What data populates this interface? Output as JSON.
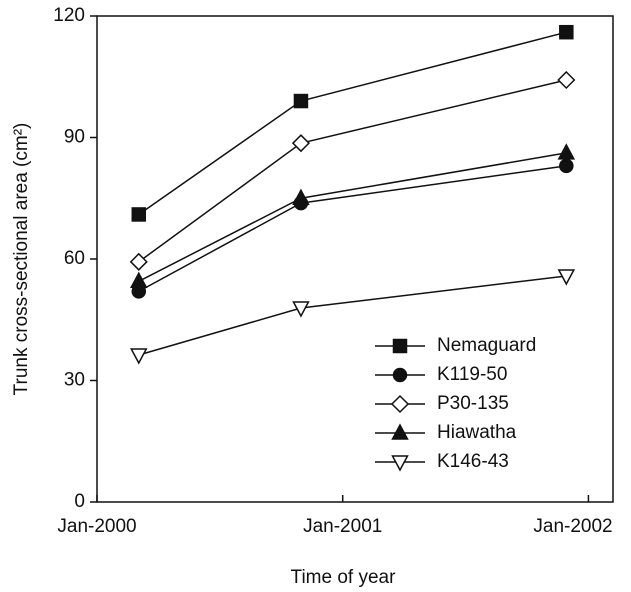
{
  "chart_data": {
    "type": "line",
    "x_label": "Time of year",
    "y_label": "Trunk cross-sectional area (cm²)",
    "x": [
      2000.17,
      2000.83,
      2001.91
    ],
    "xlim": [
      2000,
      2002.1
    ],
    "xticks": [
      {
        "value": 2000,
        "label": "Jan-2000"
      },
      {
        "value": 2001,
        "label": "Jan-2001"
      },
      {
        "value": 2002,
        "label": "Jan-2002"
      }
    ],
    "ylim": [
      0,
      120
    ],
    "yticks": [
      0,
      30,
      60,
      90,
      120
    ],
    "legend": "lower right",
    "series": [
      {
        "name": "Nemaguard",
        "color": "#111111",
        "marker": "square",
        "filled": true,
        "values": [
          71,
          99,
          116
        ]
      },
      {
        "name": "K119-50",
        "color": "#111111",
        "marker": "circle",
        "filled": true,
        "values": [
          52,
          73.8,
          83
        ]
      },
      {
        "name": "P30-135",
        "color": "#111111",
        "marker": "diamond",
        "filled": false,
        "values": [
          59.3,
          88.6,
          104.2
        ]
      },
      {
        "name": "Hiawatha",
        "color": "#111111",
        "marker": "triangle-up",
        "filled": true,
        "values": [
          54.5,
          75,
          86.2
        ]
      },
      {
        "name": "K146-43",
        "color": "#111111",
        "marker": "triangle-down",
        "filled": false,
        "values": [
          36.3,
          47.9,
          55.8
        ]
      }
    ]
  }
}
